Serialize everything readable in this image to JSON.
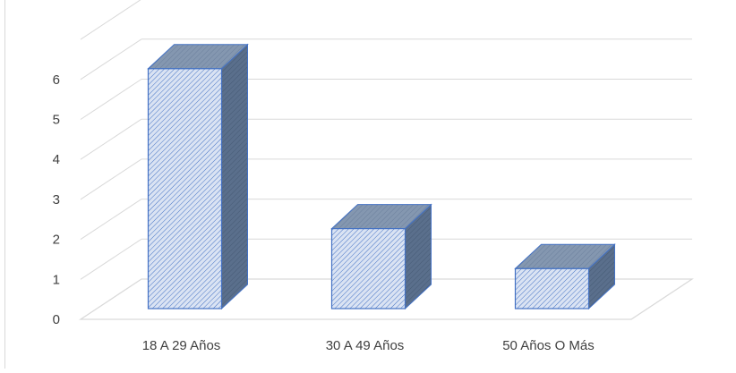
{
  "chart_data": {
    "type": "bar",
    "style": "3d-column",
    "categories": [
      "18 A 29 Años",
      "30 A 49 Años",
      "50 Años O Más"
    ],
    "values": [
      6,
      2,
      1
    ],
    "y_ticks": [
      "0",
      "1",
      "2",
      "3",
      "4",
      "5",
      "6"
    ],
    "ylim": [
      0,
      6
    ],
    "grid": true,
    "legend": "none",
    "colors": {
      "bar_fill": "#dae3f3",
      "bar_hatch": "#4472c4",
      "bar_edge": "#4472c4",
      "bar_top": "#8497b0",
      "bar_side": "#5a6f8c",
      "gridline": "#d9d9d9",
      "label": "#404040"
    }
  }
}
